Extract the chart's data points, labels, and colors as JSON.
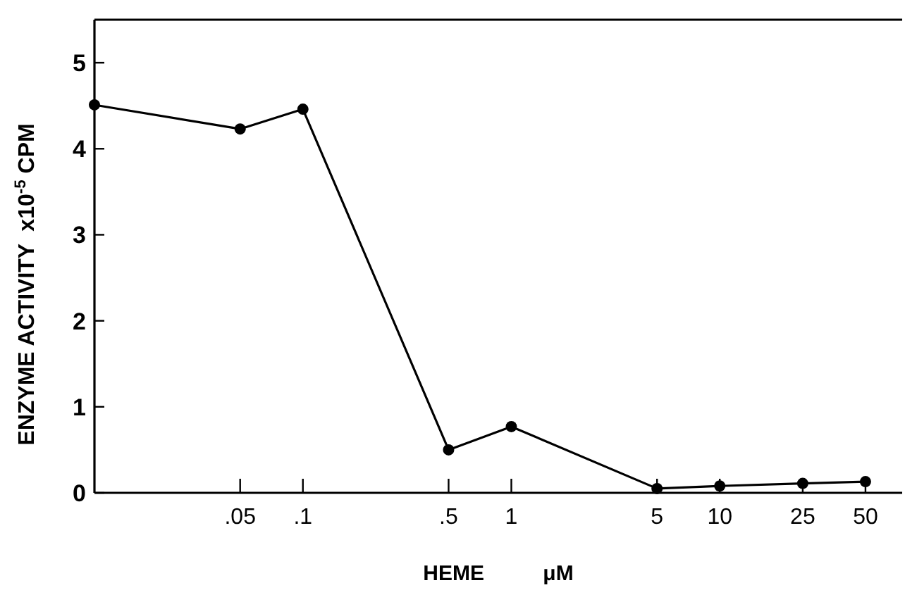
{
  "chart_data": {
    "type": "line",
    "xlabel": "HEME          μM",
    "ylabel": "ENZYME ACTIVITY  x10$^{-5}$ CPM",
    "log": "x",
    "x": [
      0.01,
      0.05,
      0.1,
      0.5,
      1,
      5,
      10,
      25,
      50
    ],
    "series": [
      {
        "color": "#000000",
        "values": [
          4.51,
          4.23,
          4.46,
          0.5,
          0.77,
          0.05,
          0.08,
          0.11,
          0.13
        ]
      }
    ],
    "xlim": [
      0.01,
      75
    ],
    "xticks": [
      {
        "value": 0.05,
        "label": ".05"
      },
      {
        "value": 0.1,
        "label": ".1"
      },
      {
        "value": 0.5,
        "label": ".5"
      },
      1,
      5,
      10,
      25,
      50
    ],
    "ylim": [
      0,
      5.5
    ],
    "yticks": [
      0,
      1,
      2,
      3,
      4,
      5
    ],
    "marker": "circle",
    "line_style": "solid"
  }
}
